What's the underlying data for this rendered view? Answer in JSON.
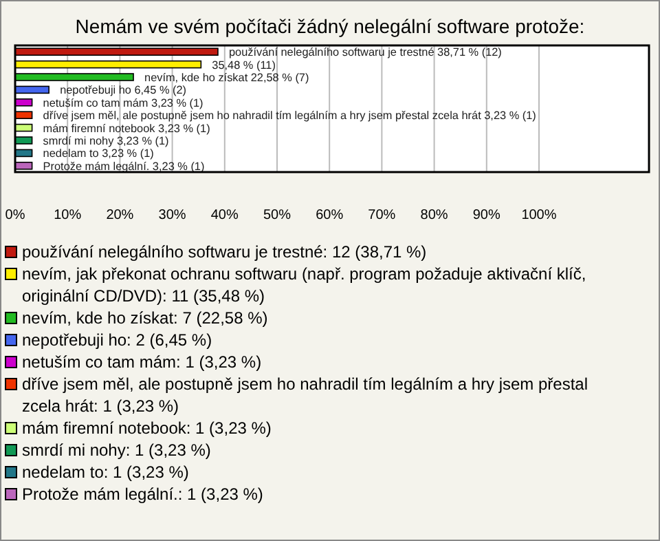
{
  "chart_data": {
    "type": "bar",
    "orientation": "horizontal",
    "title": "Nemám ve svém počítači žádný nelegální software protože:",
    "categories": [
      "používání nelegálního softwaru je trestné",
      null,
      "nevím, kde ho získat",
      "nepotřebuji ho",
      "netuším co tam mám",
      "dříve jsem měl, ale postupně jsem ho nahradil tím legálním a hry jsem přestal zcela hrát",
      "mám firemní notebook",
      "smrdí mi nohy",
      "nedelam to",
      "Protože mám legální."
    ],
    "values": [
      38.71,
      35.48,
      22.58,
      6.45,
      3.23,
      3.23,
      3.23,
      3.23,
      3.23,
      3.23
    ],
    "colors": [
      "#c01a10",
      "#ffee00",
      "#22bb22",
      "#4466ee",
      "#cc00cc",
      "#ee3300",
      "#ccff77",
      "#119955",
      "#227788",
      "#bb66bb"
    ],
    "value_labels": [
      "38,71 % (12)",
      "35,48 % (11)",
      "22,58 % (7)",
      "6,45 % (2)",
      "3,23 % (1)",
      "3,23 % (1)",
      "3,23 % (1)",
      "3,23 % (1)",
      "3,23 % (1)",
      "3,23 % (1)"
    ],
    "xlim": [
      0,
      121
    ],
    "xticks": [
      {
        "value": 0,
        "label": "0%"
      },
      {
        "value": 10,
        "label": "10%"
      },
      {
        "value": 20,
        "label": "20%"
      },
      {
        "value": 30,
        "label": "30%"
      },
      {
        "value": 40,
        "label": "40%"
      },
      {
        "value": 50,
        "label": "50%"
      },
      {
        "value": 60,
        "label": "60%"
      },
      {
        "value": 70,
        "label": "70%"
      },
      {
        "value": 80,
        "label": "80%"
      },
      {
        "value": 90,
        "label": "90%"
      },
      {
        "value": 100,
        "label": "100%"
      }
    ],
    "grid": "x",
    "annotations": [
      "používání nelegálního softwaru je trestné: 12 (38,71 %)",
      "nevím, jak překonat ochranu softwaru (např. program požaduje aktivační klíč, originální CD/DVD): 11 (35,48 %)",
      "nevím, kde ho získat: 7 (22,58 %)",
      "nepotřebuji ho: 2 (6,45 %)",
      "netuším co tam mám: 1 (3,23 %)",
      "dříve jsem měl, ale postupně jsem ho nahradil tím legálním a hry jsem přestal zcela hrát: 1 (3,23 %)",
      "mám firemní notebook: 1 (3,23 %)",
      "smrdí mi nohy: 1 (3,23 %)",
      "nedelam to: 1 (3,23 %)",
      "Protože mám legální.: 1 (3,23 %)"
    ]
  }
}
